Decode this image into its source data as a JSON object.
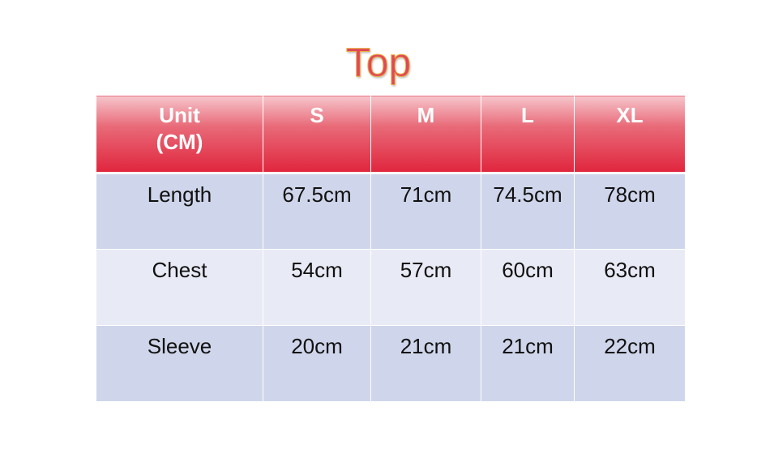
{
  "title": "Top",
  "table": {
    "headers": [
      "Unit\n(CM)",
      "S",
      "M",
      "L",
      "XL"
    ],
    "rows": [
      [
        "Length",
        "67.5cm",
        "71cm",
        "74.5cm",
        "78cm"
      ],
      [
        "Chest",
        "54cm",
        "57cm",
        "60cm",
        "63cm"
      ],
      [
        "Sleeve",
        "20cm",
        "21cm",
        "21cm",
        "22cm"
      ]
    ]
  },
  "colors": {
    "header": "#e0253d",
    "title": "#e04858",
    "row_dark": "#cfd5ea",
    "row_light": "#e8eaf5"
  }
}
